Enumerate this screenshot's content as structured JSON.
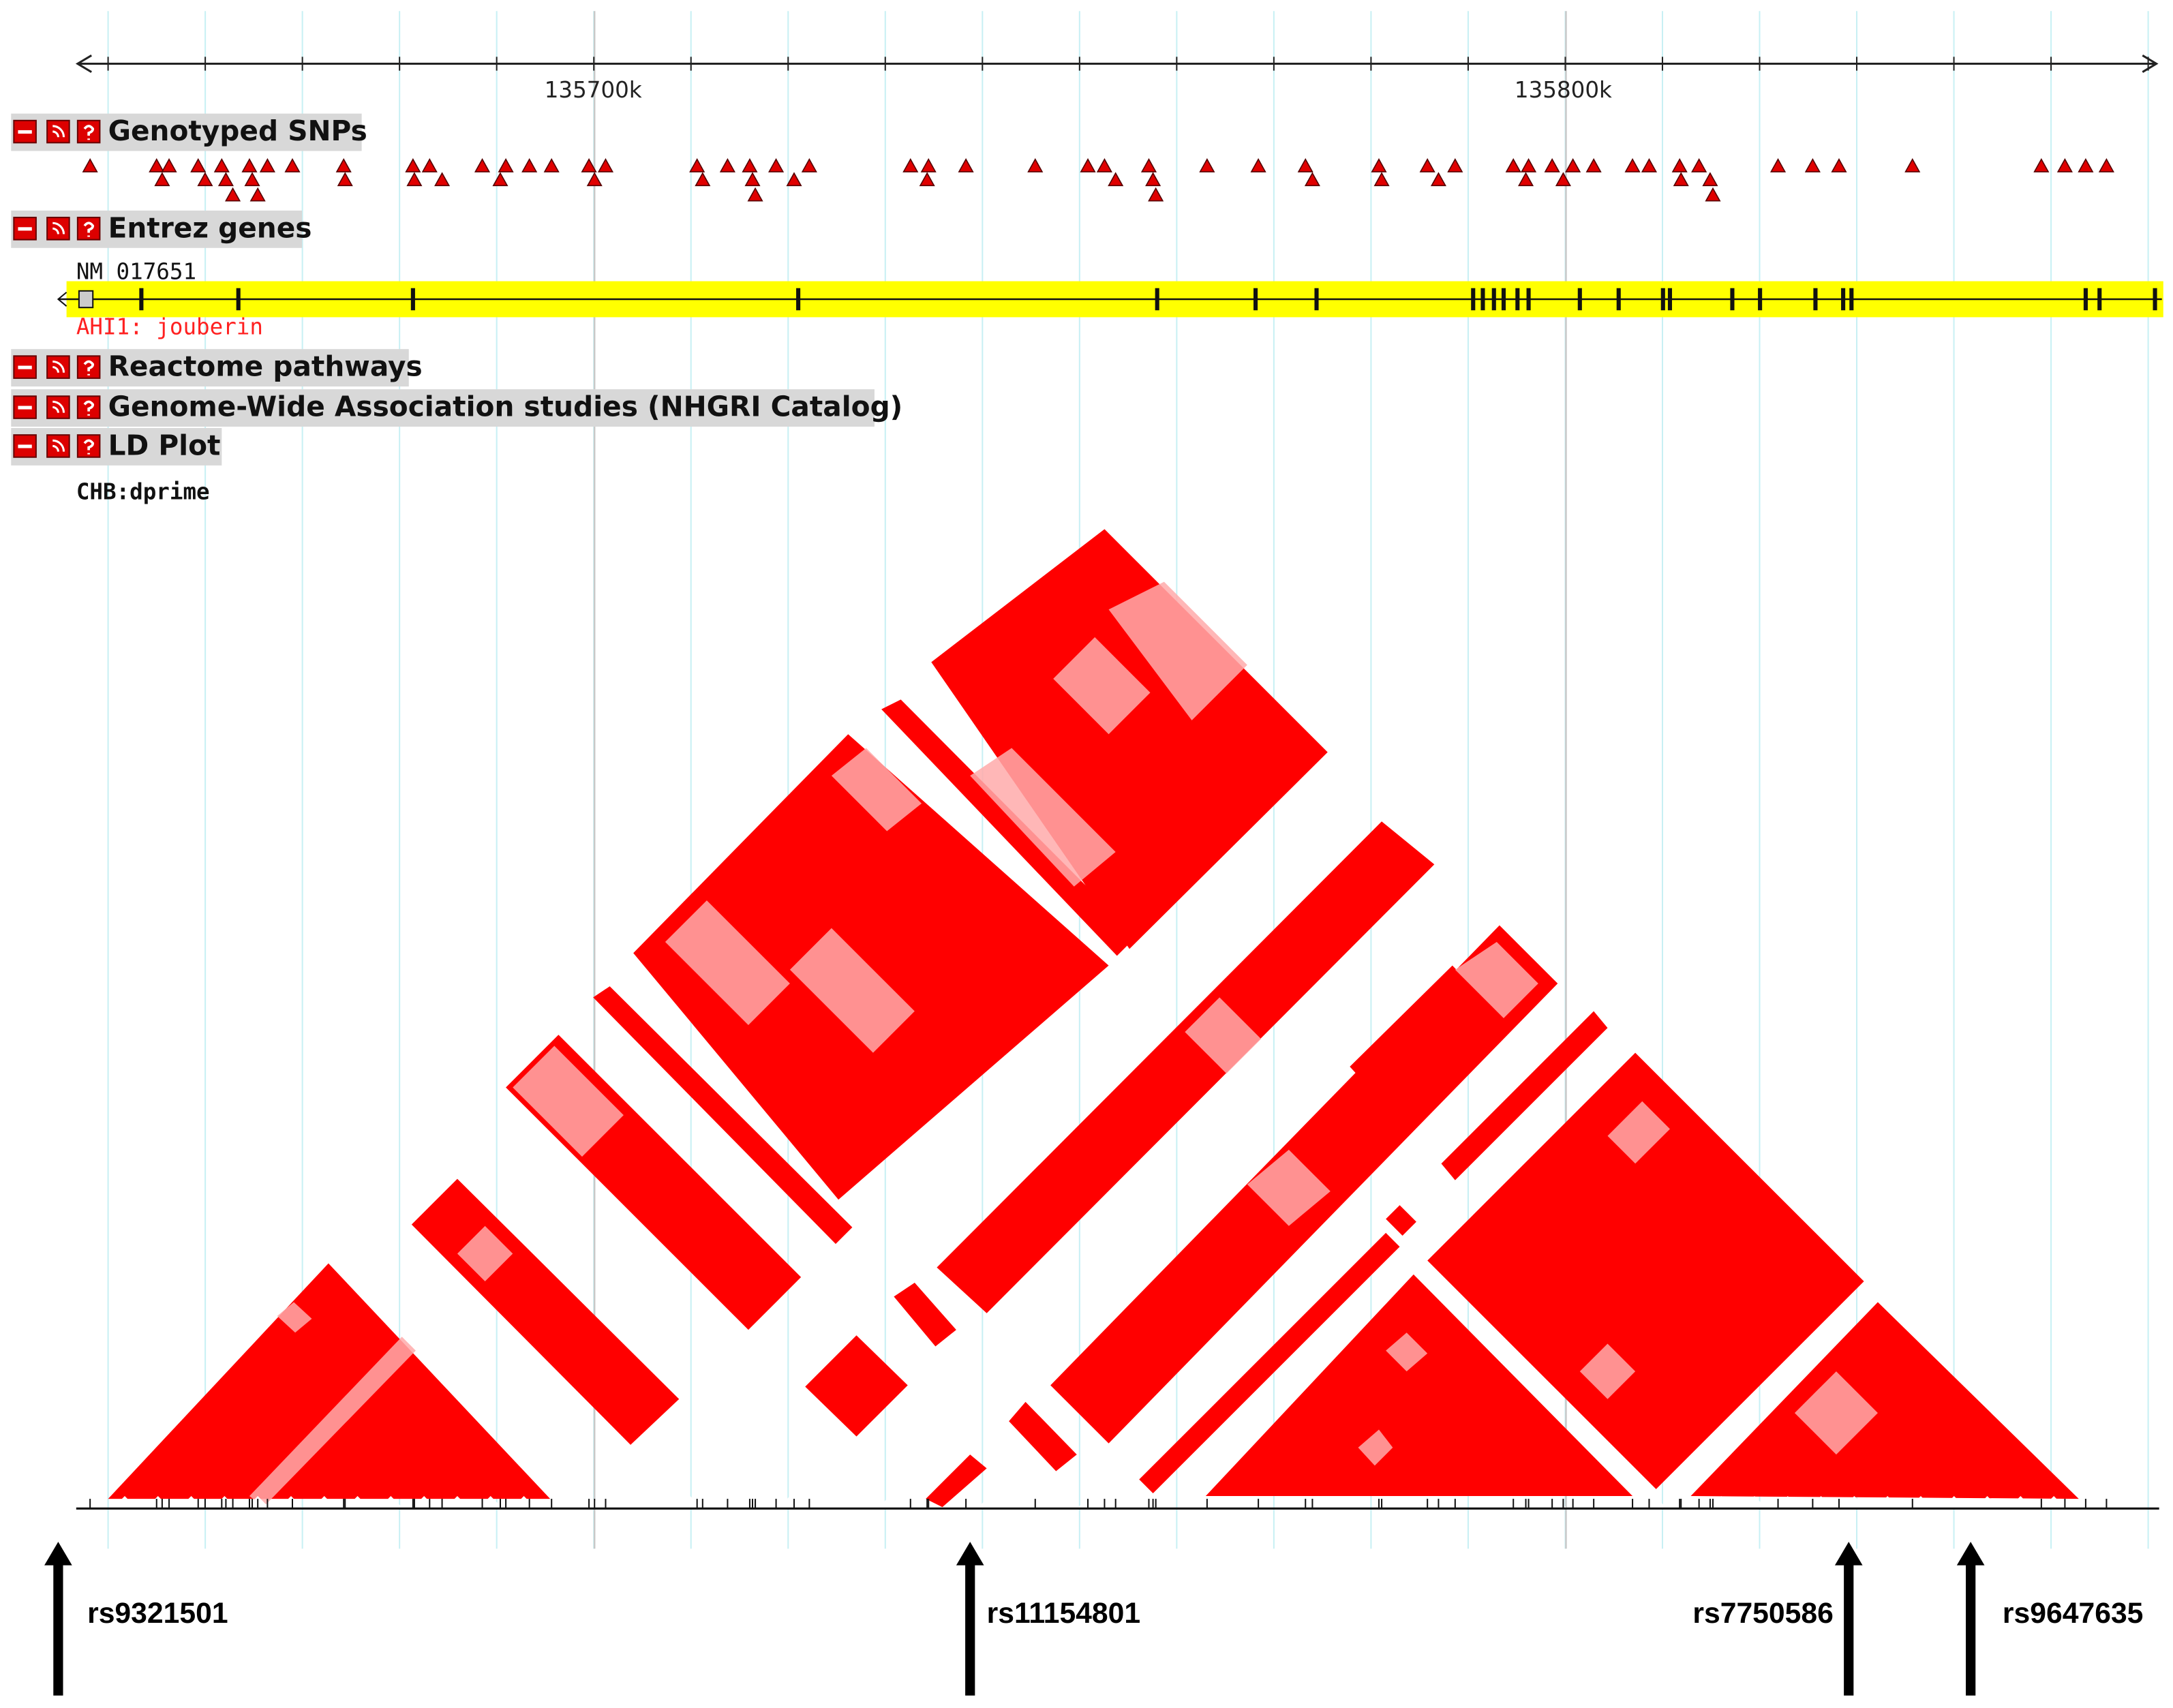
{
  "ruler": {
    "labels": [
      "135700k",
      "135800k"
    ]
  },
  "tracks": [
    {
      "title": "Genotyped SNPs"
    },
    {
      "title": "Entrez genes",
      "gene": {
        "accession": "NM_017651",
        "label": "AHI1: jouberin"
      }
    },
    {
      "title": "Reactome pathways"
    },
    {
      "title": "Genome-Wide Association studies (NHGRI Catalog)"
    },
    {
      "title": "LD Plot",
      "population": "CHB:dprime"
    }
  ],
  "snp_labels": [
    "rs9321501",
    "rs11154801",
    "rs7750586",
    "rs9647635"
  ]
}
